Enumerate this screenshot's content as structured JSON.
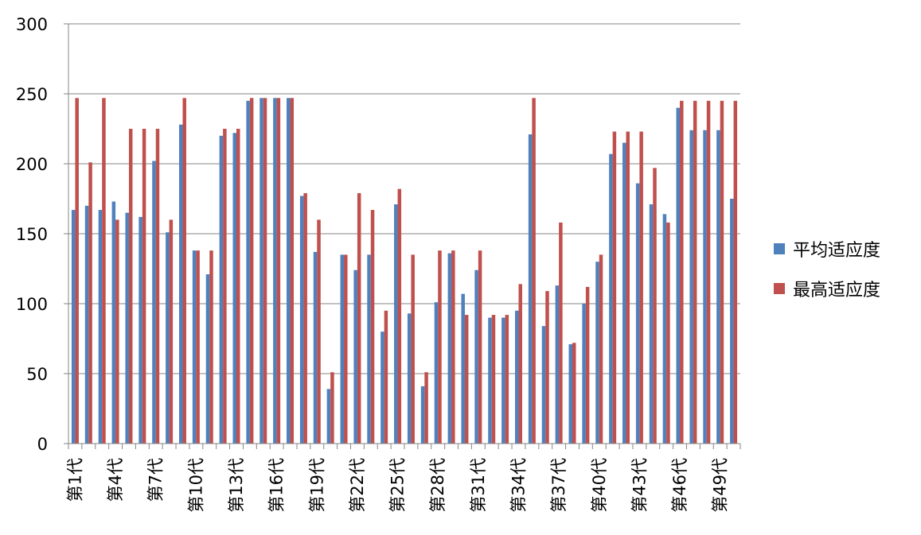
{
  "chart_data": {
    "type": "bar",
    "title": "",
    "xlabel": "",
    "ylabel": "",
    "ylim": [
      0,
      300
    ],
    "yticks": [
      0,
      50,
      100,
      150,
      200,
      250,
      300
    ],
    "grid": true,
    "legend_position": "right",
    "categories": [
      "第1代",
      "第2代",
      "第3代",
      "第4代",
      "第5代",
      "第6代",
      "第7代",
      "第8代",
      "第9代",
      "第10代",
      "第11代",
      "第12代",
      "第13代",
      "第14代",
      "第15代",
      "第16代",
      "第17代",
      "第18代",
      "第19代",
      "第20代",
      "第21代",
      "第22代",
      "第23代",
      "第24代",
      "第25代",
      "第26代",
      "第27代",
      "第28代",
      "第29代",
      "第30代",
      "第31代",
      "第32代",
      "第33代",
      "第34代",
      "第35代",
      "第36代",
      "第37代",
      "第38代",
      "第39代",
      "第40代",
      "第41代",
      "第42代",
      "第43代",
      "第44代",
      "第45代",
      "第46代",
      "第47代",
      "第48代",
      "第49代",
      "第50代"
    ],
    "visible_tick_labels": [
      "第1代",
      "第4代",
      "第7代",
      "第10代",
      "第13代",
      "第16代",
      "第19代",
      "第22代",
      "第25代",
      "第28代",
      "第31代",
      "第34代",
      "第37代",
      "第40代",
      "第43代",
      "第46代",
      "第49代"
    ],
    "series": [
      {
        "name": "平均适应度",
        "color": "#4F81BD",
        "values": [
          167,
          170,
          167,
          173,
          165,
          162,
          202,
          151,
          228,
          138,
          121,
          220,
          222,
          245,
          247,
          247,
          247,
          177,
          137,
          39,
          135,
          124,
          135,
          80,
          171,
          93,
          41,
          101,
          136,
          107,
          124,
          90,
          90,
          95,
          221,
          84,
          113,
          71,
          100,
          130,
          207,
          215,
          186,
          171,
          164,
          240,
          224,
          224,
          224,
          175
        ]
      },
      {
        "name": "最高适应度",
        "color": "#C0504D",
        "values": [
          247,
          201,
          247,
          160,
          225,
          225,
          225,
          160,
          247,
          138,
          138,
          225,
          225,
          247,
          247,
          247,
          247,
          179,
          160,
          51,
          135,
          179,
          167,
          95,
          182,
          135,
          51,
          138,
          138,
          92,
          138,
          92,
          92,
          114,
          247,
          109,
          158,
          72,
          112,
          135,
          223,
          223,
          223,
          197,
          158,
          245,
          245,
          245,
          245,
          245
        ]
      }
    ]
  }
}
